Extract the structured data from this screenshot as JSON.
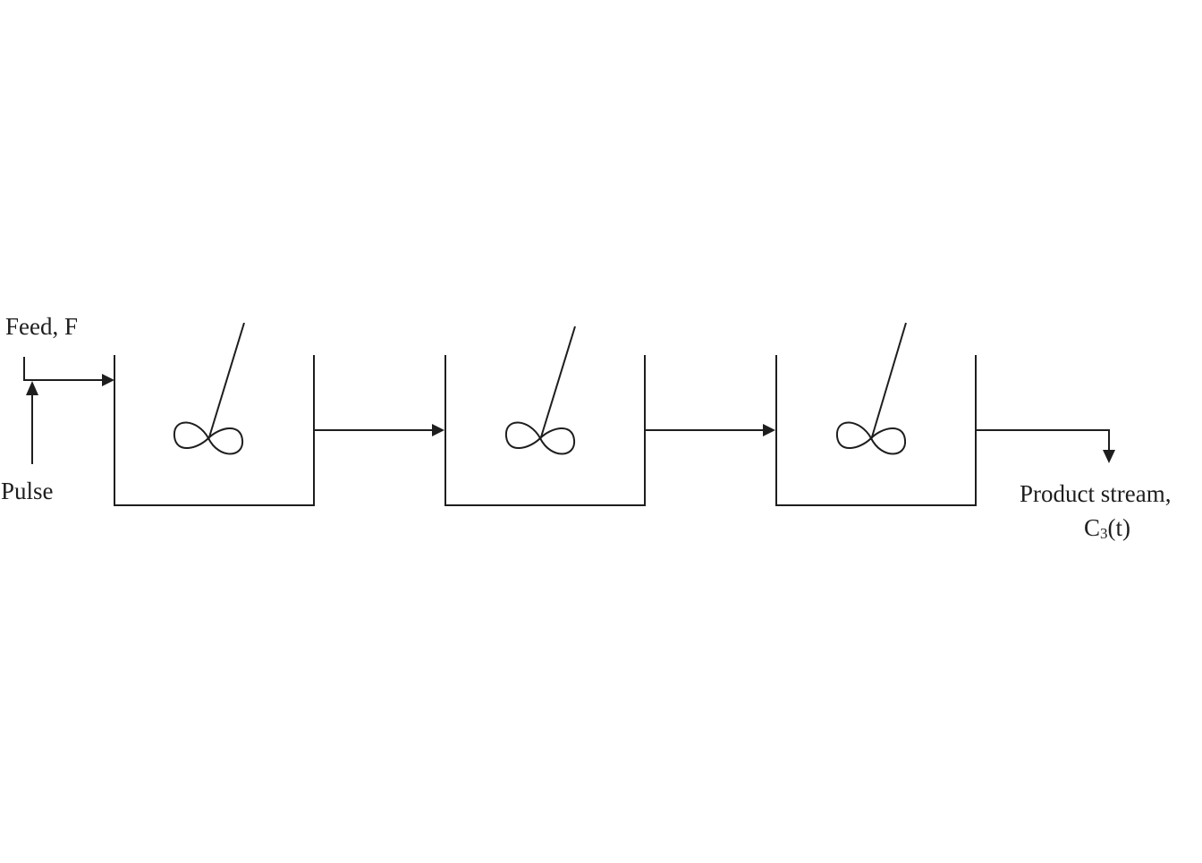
{
  "labels": {
    "feed": "Feed, F",
    "pulse": "Pulse",
    "product_line1": "Product stream,",
    "product_line2_main": "C",
    "product_line2_sub": "3",
    "product_line2_tail": "(t)"
  },
  "tanks": [
    {
      "id": 1,
      "type": "stirred-tank-reactor"
    },
    {
      "id": 2,
      "type": "stirred-tank-reactor"
    },
    {
      "id": 3,
      "type": "stirred-tank-reactor"
    }
  ],
  "colors": {
    "stroke": "#1e1e1e",
    "background": "#ffffff"
  }
}
